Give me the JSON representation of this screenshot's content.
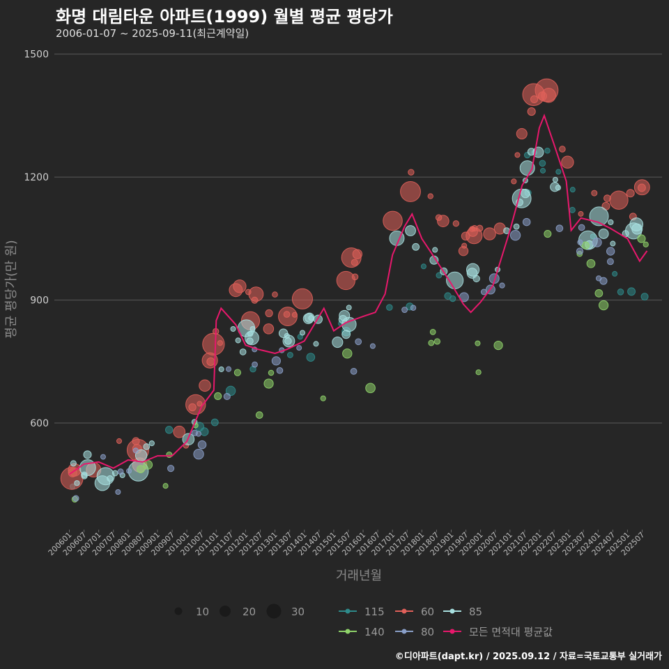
{
  "header": {
    "title": "화명 대림타운 아파트(1999) 월별 평균 평당가",
    "subtitle": "2006-01-07 ~ 2025-09-11(최근계약일)"
  },
  "footer": {
    "credit": "©디아파트(dapt.kr) / 2025.09.12 / 자료=국토교통부 실거래가"
  },
  "chart_data": {
    "type": "scatter",
    "xlabel": "거래년월",
    "ylabel": "평균 평당가(만 원)",
    "ylim": [
      340,
      1530
    ],
    "yticks": [
      600,
      900,
      1200,
      1500
    ],
    "x_range": [
      "2006-01",
      "2025-09"
    ],
    "x_tick_labels": [
      "200601",
      "200607",
      "200701",
      "200707",
      "200801",
      "200807",
      "200901",
      "200907",
      "201001",
      "201007",
      "201101",
      "201107",
      "201201",
      "201207",
      "201301",
      "201307",
      "201401",
      "201407",
      "201501",
      "201507",
      "201601",
      "201607",
      "201701",
      "201707",
      "201801",
      "201807",
      "201901",
      "201907",
      "202001",
      "202007",
      "202101",
      "202107",
      "202201",
      "202207",
      "202301",
      "202307",
      "202401",
      "202407",
      "202501",
      "202507"
    ],
    "grid": true,
    "legend_position": "bottom",
    "size_legend": {
      "values": [
        10,
        20,
        30
      ],
      "labels": [
        "10",
        "20",
        "30"
      ]
    },
    "series_legend": [
      {
        "name": "115",
        "color": "#2e8b8b"
      },
      {
        "name": "60",
        "color": "#e0605a"
      },
      {
        "name": "85",
        "color": "#a8e0e0"
      },
      {
        "name": "140",
        "color": "#8fd46a"
      },
      {
        "name": "80",
        "color": "#8a9fc8"
      },
      {
        "name": "모든 면적대 평균값",
        "color": "#e8186c"
      }
    ],
    "average_line": {
      "name": "모든 면적대 평균값",
      "color": "#e8186c",
      "x": [
        "2006-01",
        "2006-07",
        "2007-01",
        "2007-07",
        "2008-01",
        "2008-07",
        "2009-01",
        "2009-07",
        "2010-01",
        "2010-07",
        "2010-12",
        "2011-01",
        "2011-03",
        "2011-06",
        "2011-09",
        "2012-01",
        "2012-06",
        "2013-01",
        "2013-06",
        "2014-01",
        "2014-06",
        "2014-09",
        "2015-01",
        "2015-06",
        "2016-01",
        "2016-06",
        "2016-10",
        "2017-01",
        "2017-06",
        "2017-09",
        "2018-01",
        "2018-06",
        "2019-01",
        "2019-06",
        "2019-09",
        "2020-01",
        "2020-06",
        "2021-01",
        "2021-06",
        "2021-10",
        "2022-01",
        "2022-03",
        "2022-07",
        "2022-12",
        "2023-02",
        "2023-06",
        "2024-01",
        "2024-06",
        "2025-01",
        "2025-06",
        "2025-09"
      ],
      "y": [
        475,
        500,
        505,
        490,
        510,
        505,
        520,
        520,
        555,
        640,
        680,
        850,
        880,
        860,
        840,
        790,
        780,
        770,
        780,
        800,
        850,
        880,
        825,
        845,
        860,
        870,
        915,
        1010,
        1080,
        1110,
        1050,
        1005,
        940,
        890,
        870,
        895,
        935,
        1070,
        1180,
        1220,
        1320,
        1350,
        1280,
        1190,
        1070,
        1100,
        1090,
        1075,
        1050,
        995,
        1020
      ]
    },
    "series": [
      {
        "name": "115",
        "color": "#2e8b8b",
        "anchors_x": [
          "2006-01",
          "2008-01",
          "2010-01",
          "2012-01",
          "2014-01",
          "2016-01",
          "2018-01",
          "2020-01",
          "2022-01",
          "2024-01",
          "2025-09"
        ],
        "anchors_y": [
          470,
          485,
          560,
          740,
          790,
          830,
          960,
          900,
          1270,
          1020,
          880
        ],
        "count": 32,
        "spread": 60,
        "sizes": [
          4,
          12
        ]
      },
      {
        "name": "60",
        "color": "#e0605a",
        "anchors_x": [
          "2006-01",
          "2008-01",
          "2010-01",
          "2011-06",
          "2013-01",
          "2015-01",
          "2016-06",
          "2017-06",
          "2019-01",
          "2020-06",
          "2022-01",
          "2023-06",
          "2025-09"
        ],
        "anchors_y": [
          500,
          520,
          580,
          900,
          870,
          960,
          1030,
          1200,
          1050,
          1060,
          1440,
          1130,
          1150
        ],
        "count": 75,
        "spread": 45,
        "sizes": [
          4,
          30
        ]
      },
      {
        "name": "85",
        "color": "#a8e0e0",
        "anchors_x": [
          "2006-01",
          "2008-01",
          "2010-01",
          "2011-06",
          "2013-01",
          "2015-01",
          "2016-06",
          "2017-06",
          "2019-01",
          "2020-06",
          "2022-01",
          "2023-06",
          "2025-09"
        ],
        "anchors_y": [
          480,
          500,
          560,
          800,
          820,
          830,
          880,
          1080,
          950,
          930,
          1300,
          1070,
          1060
        ],
        "count": 75,
        "spread": 40,
        "sizes": [
          4,
          26
        ]
      },
      {
        "name": "140",
        "color": "#8fd46a",
        "anchors_x": [
          "2006-01",
          "2008-01",
          "2010-01",
          "2012-01",
          "2014-01",
          "2016-01",
          "2018-01",
          "2020-01",
          "2022-01",
          "2024-01",
          "2025-09"
        ],
        "anchors_y": [
          440,
          450,
          520,
          680,
          650,
          720,
          820,
          760,
          1080,
          950,
          1000
        ],
        "count": 28,
        "spread": 70,
        "sizes": [
          4,
          11
        ]
      },
      {
        "name": "80",
        "color": "#8a9fc8",
        "anchors_x": [
          "2006-01",
          "2008-01",
          "2010-01",
          "2012-01",
          "2014-01",
          "2016-01",
          "2018-01",
          "2020-01",
          "2022-01",
          "2024-01",
          "2025-09"
        ],
        "anchors_y": [
          470,
          480,
          530,
          760,
          760,
          780,
          900,
          870,
          1180,
          1000,
          960
        ],
        "count": 40,
        "spread": 55,
        "sizes": [
          4,
          12
        ]
      }
    ]
  }
}
